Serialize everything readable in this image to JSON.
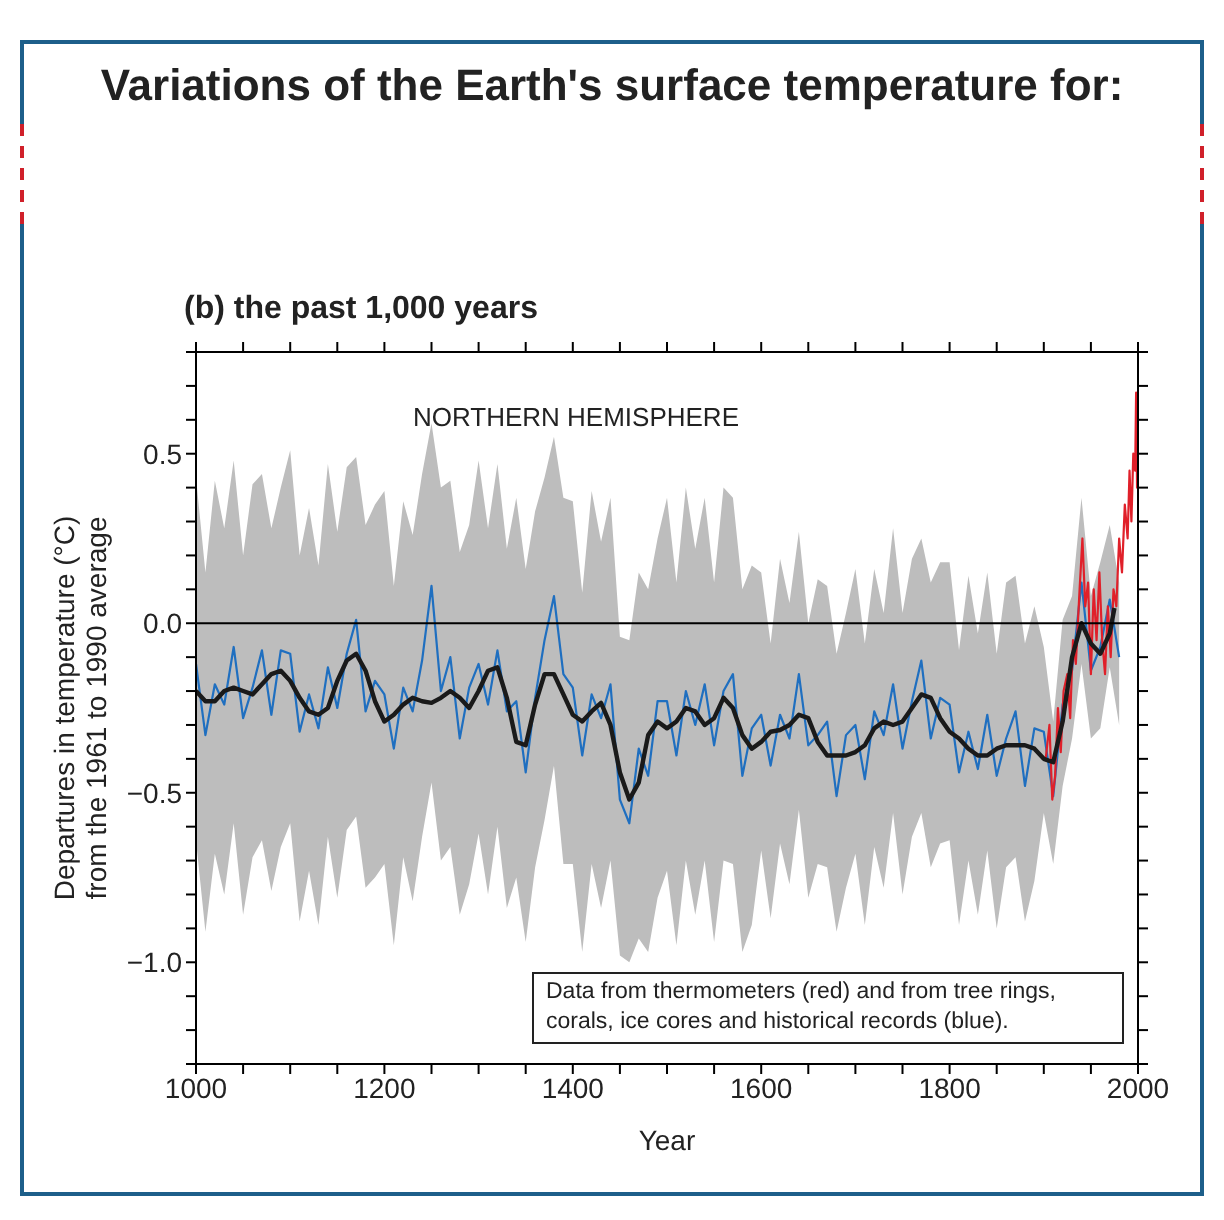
{
  "chart_data": {
    "type": "line",
    "title": "Variations of the Earth's surface temperature for:",
    "subtitle": "(b) the past 1,000 years",
    "xlabel": "Year",
    "ylabel": "Departures in temperature (°C)\nfrom the 1961 to 1990 average",
    "annotations": [
      "NORTHERN HEMISPHERE",
      "Data from thermometers (red) and from tree rings, corals, ice cores and historical records (blue)."
    ],
    "xlim": [
      1000,
      2000
    ],
    "xticks": [
      1000,
      {
        "value": 1050,
        "label": null
      },
      {
        "value": 1100,
        "label": null
      },
      {
        "value": 1150,
        "label": null
      },
      1200,
      {
        "value": 1250,
        "label": null
      },
      {
        "value": 1300,
        "label": null
      },
      {
        "value": 1350,
        "label": null
      },
      1400,
      {
        "value": 1450,
        "label": null
      },
      {
        "value": 1500,
        "label": null
      },
      {
        "value": 1550,
        "label": null
      },
      1600,
      {
        "value": 1650,
        "label": null
      },
      {
        "value": 1700,
        "label": null
      },
      {
        "value": 1750,
        "label": null
      },
      1800,
      {
        "value": 1850,
        "label": null
      },
      {
        "value": 1900,
        "label": null
      },
      {
        "value": 1950,
        "label": null
      },
      2000
    ],
    "ylim": [
      -1.3,
      0.8
    ],
    "yticks": [
      {
        "value": -1.3,
        "label": null
      },
      {
        "value": -1.2,
        "label": null
      },
      {
        "value": -1.1,
        "label": null
      },
      {
        "value": -1.0,
        "label": "−1.0"
      },
      {
        "value": -0.9,
        "label": null
      },
      {
        "value": -0.8,
        "label": null
      },
      {
        "value": -0.7,
        "label": null
      },
      {
        "value": -0.6,
        "label": null
      },
      {
        "value": -0.5,
        "label": "−0.5"
      },
      {
        "value": -0.4,
        "label": null
      },
      {
        "value": -0.3,
        "label": null
      },
      {
        "value": -0.2,
        "label": null
      },
      {
        "value": -0.1,
        "label": null
      },
      {
        "value": 0,
        "label": "0.0"
      },
      {
        "value": 0.1,
        "label": null
      },
      {
        "value": 0.2,
        "label": null
      },
      {
        "value": 0.3,
        "label": null
      },
      {
        "value": 0.4,
        "label": null
      },
      {
        "value": 0.5,
        "label": "0.5"
      },
      {
        "value": 0.6,
        "label": null
      },
      {
        "value": 0.7,
        "label": null
      },
      {
        "value": 0.8,
        "label": null
      }
    ],
    "marker": "none",
    "line_style": "solid",
    "ref_lines": [
      {
        "axis": "y",
        "value": 0,
        "color": "#000000"
      }
    ],
    "series": [
      {
        "color": "#1f6fc0",
        "x": [
          1000,
          1010,
          1020,
          1030,
          1040,
          1050,
          1060,
          1070,
          1080,
          1090,
          1100,
          1110,
          1120,
          1130,
          1140,
          1150,
          1160,
          1170,
          1180,
          1190,
          1200,
          1210,
          1220,
          1230,
          1240,
          1250,
          1260,
          1270,
          1280,
          1290,
          1300,
          1310,
          1320,
          1330,
          1340,
          1350,
          1360,
          1370,
          1380,
          1390,
          1400,
          1410,
          1420,
          1430,
          1440,
          1450,
          1460,
          1470,
          1480,
          1490,
          1500,
          1510,
          1520,
          1530,
          1540,
          1550,
          1560,
          1570,
          1580,
          1590,
          1600,
          1610,
          1620,
          1630,
          1640,
          1650,
          1660,
          1670,
          1680,
          1690,
          1700,
          1710,
          1720,
          1730,
          1740,
          1750,
          1760,
          1770,
          1780,
          1790,
          1800,
          1810,
          1820,
          1830,
          1840,
          1850,
          1860,
          1870,
          1880,
          1890,
          1900,
          1910,
          1920,
          1930,
          1940,
          1950,
          1960,
          1970,
          1980
        ],
        "values": [
          -0.12,
          -0.33,
          -0.18,
          -0.24,
          -0.07,
          -0.28,
          -0.19,
          -0.08,
          -0.27,
          -0.08,
          -0.09,
          -0.32,
          -0.21,
          -0.31,
          -0.13,
          -0.25,
          -0.09,
          0.01,
          -0.26,
          -0.17,
          -0.21,
          -0.37,
          -0.19,
          -0.26,
          -0.11,
          0.11,
          -0.2,
          -0.1,
          -0.34,
          -0.19,
          -0.12,
          -0.24,
          -0.08,
          -0.26,
          -0.23,
          -0.44,
          -0.22,
          -0.05,
          0.08,
          -0.15,
          -0.19,
          -0.39,
          -0.21,
          -0.28,
          -0.18,
          -0.52,
          -0.59,
          -0.37,
          -0.45,
          -0.23,
          -0.23,
          -0.39,
          -0.2,
          -0.3,
          -0.18,
          -0.36,
          -0.2,
          -0.15,
          -0.45,
          -0.31,
          -0.27,
          -0.42,
          -0.27,
          -0.34,
          -0.15,
          -0.36,
          -0.33,
          -0.29,
          -0.51,
          -0.33,
          -0.3,
          -0.46,
          -0.26,
          -0.33,
          -0.18,
          -0.37,
          -0.23,
          -0.11,
          -0.34,
          -0.22,
          -0.24,
          -0.44,
          -0.32,
          -0.43,
          -0.27,
          -0.45,
          -0.34,
          -0.26,
          -0.48,
          -0.31,
          -0.32,
          -0.51,
          -0.24,
          -0.14,
          0.12,
          -0.14,
          -0.07,
          0.07,
          -0.1
        ],
        "lower": [
          -0.64,
          -0.91,
          -0.68,
          -0.8,
          -0.59,
          -0.86,
          -0.69,
          -0.64,
          -0.79,
          -0.66,
          -0.59,
          -0.88,
          -0.73,
          -0.89,
          -0.63,
          -0.81,
          -0.61,
          -0.57,
          -0.78,
          -0.75,
          -0.71,
          -0.95,
          -0.69,
          -0.82,
          -0.63,
          -0.47,
          -0.7,
          -0.66,
          -0.86,
          -0.77,
          -0.62,
          -0.8,
          -0.6,
          -0.84,
          -0.75,
          -0.94,
          -0.72,
          -0.58,
          -0.42,
          -0.71,
          -0.71,
          -0.97,
          -0.71,
          -0.84,
          -0.7,
          -0.98,
          -1.0,
          -0.93,
          -0.97,
          -0.81,
          -0.73,
          -0.95,
          -0.7,
          -0.86,
          -0.7,
          -0.94,
          -0.7,
          -0.71,
          -0.97,
          -0.89,
          -0.67,
          -0.87,
          -0.65,
          -0.77,
          -0.55,
          -0.81,
          -0.71,
          -0.72,
          -0.91,
          -0.78,
          -0.68,
          -0.89,
          -0.66,
          -0.78,
          -0.56,
          -0.8,
          -0.63,
          -0.56,
          -0.72,
          -0.65,
          -0.64,
          -0.89,
          -0.7,
          -0.86,
          -0.67,
          -0.9,
          -0.72,
          -0.69,
          -0.88,
          -0.76,
          -0.56,
          -0.71,
          -0.48,
          -0.34,
          -0.12,
          -0.34,
          -0.31,
          -0.13,
          -0.3
        ],
        "upper": [
          0.43,
          0.15,
          0.42,
          0.28,
          0.48,
          0.2,
          0.41,
          0.44,
          0.28,
          0.4,
          0.51,
          0.2,
          0.34,
          0.17,
          0.47,
          0.27,
          0.46,
          0.49,
          0.29,
          0.35,
          0.39,
          0.11,
          0.36,
          0.26,
          0.44,
          0.59,
          0.4,
          0.42,
          0.21,
          0.29,
          0.48,
          0.28,
          0.47,
          0.22,
          0.37,
          0.16,
          0.33,
          0.43,
          0.55,
          0.37,
          0.36,
          0.09,
          0.39,
          0.24,
          0.37,
          -0.04,
          -0.05,
          0.15,
          0.1,
          0.25,
          0.37,
          0.12,
          0.4,
          0.22,
          0.37,
          0.12,
          0.4,
          0.37,
          0.1,
          0.17,
          0.15,
          -0.06,
          0.19,
          0.06,
          0.27,
          0.0,
          0.13,
          0.11,
          -0.09,
          0.03,
          0.16,
          -0.06,
          0.16,
          0.03,
          0.28,
          0.03,
          0.19,
          0.25,
          0.12,
          0.18,
          0.18,
          -0.08,
          0.14,
          -0.03,
          0.15,
          -0.09,
          0.12,
          0.14,
          -0.06,
          0.05,
          -0.07,
          -0.29,
          0.01,
          0.08,
          0.37,
          0.08,
          0.18,
          0.29,
          0.12
        ]
      },
      {
        "color": "#e0202a",
        "x": [
          1902,
          1906,
          1909,
          1912,
          1915,
          1918,
          1921,
          1925,
          1928,
          1931,
          1934,
          1938,
          1941,
          1944,
          1947,
          1950,
          1953,
          1956,
          1959,
          1962,
          1965,
          1968,
          1971,
          1974,
          1977,
          1980,
          1983,
          1986,
          1989,
          1991,
          1993,
          1995,
          1997,
          1998,
          1999,
          2000
        ],
        "values": [
          -0.4,
          -0.3,
          -0.52,
          -0.45,
          -0.25,
          -0.38,
          -0.2,
          -0.15,
          -0.28,
          -0.05,
          -0.12,
          0.1,
          0.25,
          0.05,
          0.12,
          -0.15,
          0.1,
          -0.05,
          0.15,
          -0.05,
          -0.15,
          0.05,
          -0.1,
          0.1,
          0.05,
          0.25,
          0.15,
          0.35,
          0.25,
          0.45,
          0.3,
          0.5,
          0.45,
          0.68,
          0.4,
          0.55
        ]
      },
      {
        "color": "#1a1a1a",
        "x": [
          1000,
          1010,
          1020,
          1030,
          1040,
          1050,
          1060,
          1070,
          1080,
          1090,
          1100,
          1110,
          1120,
          1130,
          1140,
          1150,
          1160,
          1170,
          1180,
          1190,
          1200,
          1210,
          1220,
          1230,
          1240,
          1250,
          1260,
          1270,
          1280,
          1290,
          1300,
          1310,
          1320,
          1330,
          1340,
          1350,
          1360,
          1370,
          1380,
          1390,
          1400,
          1410,
          1420,
          1430,
          1440,
          1450,
          1460,
          1470,
          1480,
          1490,
          1500,
          1510,
          1520,
          1530,
          1540,
          1550,
          1560,
          1570,
          1580,
          1590,
          1600,
          1610,
          1620,
          1630,
          1640,
          1650,
          1660,
          1670,
          1680,
          1690,
          1700,
          1710,
          1720,
          1730,
          1740,
          1750,
          1760,
          1770,
          1780,
          1790,
          1800,
          1810,
          1820,
          1830,
          1840,
          1850,
          1860,
          1870,
          1880,
          1890,
          1900,
          1910,
          1920,
          1930,
          1940,
          1950,
          1960,
          1970,
          1975
        ],
        "values": [
          -0.2,
          -0.23,
          -0.23,
          -0.2,
          -0.19,
          -0.2,
          -0.21,
          -0.18,
          -0.15,
          -0.14,
          -0.17,
          -0.22,
          -0.26,
          -0.27,
          -0.25,
          -0.17,
          -0.11,
          -0.09,
          -0.14,
          -0.23,
          -0.29,
          -0.27,
          -0.24,
          -0.22,
          -0.23,
          -0.235,
          -0.22,
          -0.2,
          -0.22,
          -0.25,
          -0.2,
          -0.14,
          -0.13,
          -0.22,
          -0.35,
          -0.36,
          -0.24,
          -0.15,
          -0.15,
          -0.21,
          -0.27,
          -0.29,
          -0.26,
          -0.235,
          -0.3,
          -0.44,
          -0.52,
          -0.47,
          -0.33,
          -0.29,
          -0.31,
          -0.29,
          -0.25,
          -0.26,
          -0.3,
          -0.28,
          -0.22,
          -0.25,
          -0.33,
          -0.37,
          -0.35,
          -0.32,
          -0.315,
          -0.3,
          -0.27,
          -0.28,
          -0.35,
          -0.39,
          -0.39,
          -0.39,
          -0.38,
          -0.36,
          -0.31,
          -0.29,
          -0.3,
          -0.29,
          -0.25,
          -0.21,
          -0.22,
          -0.28,
          -0.32,
          -0.34,
          -0.37,
          -0.39,
          -0.39,
          -0.37,
          -0.36,
          -0.36,
          -0.36,
          -0.37,
          -0.4,
          -0.41,
          -0.29,
          -0.1,
          0.0,
          -0.06,
          -0.09,
          -0.03,
          0.045
        ]
      }
    ]
  }
}
